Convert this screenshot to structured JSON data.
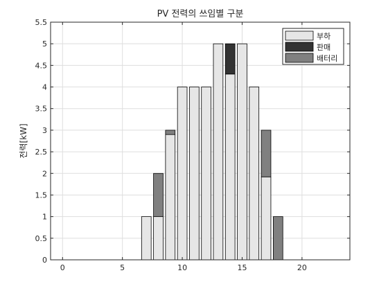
{
  "chart_data": {
    "type": "bar",
    "stacked": true,
    "title": "PV 전력의 쓰임별 구분",
    "xlabel": "",
    "ylabel": "전력[kW]",
    "xlim": [
      -1,
      24
    ],
    "ylim": [
      0,
      5.5
    ],
    "x_ticks": [
      0,
      5,
      10,
      15,
      20
    ],
    "y_ticks": [
      0,
      0.5,
      1,
      1.5,
      2,
      2.5,
      3,
      3.5,
      4,
      4.5,
      5,
      5.5
    ],
    "grid": true,
    "legend_position": "top-right",
    "x": [
      7,
      8,
      9,
      10,
      11,
      12,
      13,
      14,
      15,
      16,
      17,
      18
    ],
    "series": [
      {
        "name": "부하",
        "color": "#e6e6e6",
        "values": [
          1,
          1,
          2.9,
          4,
          4,
          4,
          5,
          4.3,
          5,
          4,
          1.92,
          0
        ]
      },
      {
        "name": "판매",
        "color": "#333333",
        "values": [
          0,
          0,
          0,
          0,
          0,
          0,
          0,
          0.7,
          0,
          0,
          0,
          0
        ]
      },
      {
        "name": "배터리",
        "color": "#808080",
        "values": [
          0,
          1,
          0.1,
          0,
          0,
          0,
          0,
          0,
          0,
          0,
          1.08,
          1
        ]
      }
    ]
  }
}
